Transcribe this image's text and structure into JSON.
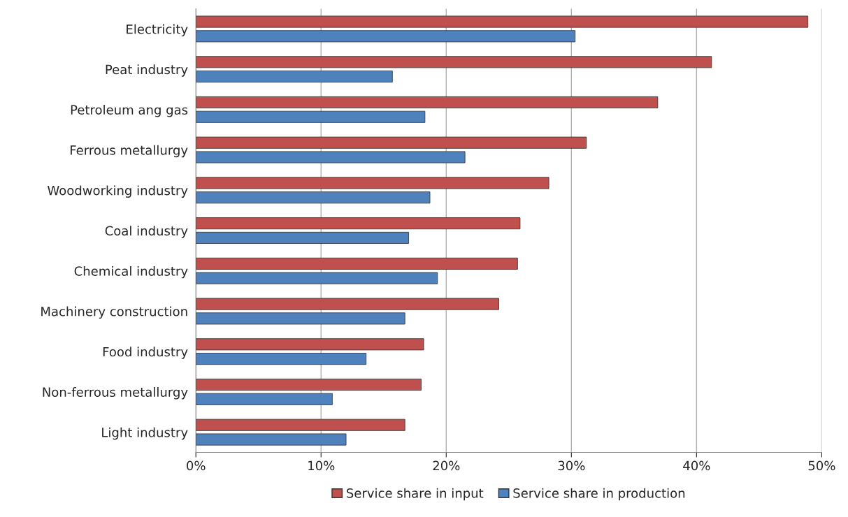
{
  "chart_data": {
    "type": "bar",
    "orientation": "horizontal",
    "categories": [
      "Electricity",
      "Peat industry",
      "Petroleum ang gas",
      "Ferrous metallurgy",
      "Woodworking industry",
      "Coal industry",
      "Chemical industry",
      "Machinery construction",
      "Food industry",
      "Non-ferrous metallurgy",
      "Light industry"
    ],
    "series": [
      {
        "name": "Service share in input",
        "color": "#c0504d",
        "values": [
          48.9,
          41.2,
          36.9,
          31.2,
          28.2,
          25.9,
          25.7,
          24.2,
          18.2,
          18.0,
          16.7
        ]
      },
      {
        "name": "Service share in production",
        "color": "#4f81bd",
        "values": [
          30.3,
          15.7,
          18.3,
          21.5,
          18.7,
          17.0,
          19.3,
          16.7,
          13.6,
          10.9,
          12.0
        ]
      }
    ],
    "xlim": [
      0,
      50
    ],
    "xticks": [
      {
        "value": 0,
        "label": "0%"
      },
      {
        "value": 10,
        "label": "10%"
      },
      {
        "value": 20,
        "label": "20%"
      },
      {
        "value": 30,
        "label": "30%"
      },
      {
        "value": 40,
        "label": "40%"
      },
      {
        "value": 50,
        "label": "50%"
      }
    ],
    "grid": "x",
    "legend": "bottom"
  }
}
